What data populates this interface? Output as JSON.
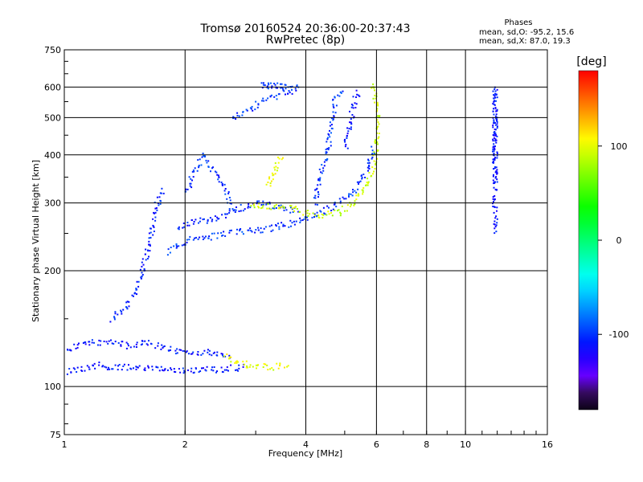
{
  "chart_data": {
    "type": "scatter",
    "title": "Tromsø 20160524 20:36:00-20:37:43",
    "subtitle": "RwPretec (8p)",
    "xlabel": "Frequency [MHz]",
    "ylabel": "Stationary phase Virtual Height [km]",
    "x_scale": "log",
    "y_scale": "log",
    "xlim": [
      1,
      16
    ],
    "ylim": [
      75,
      750
    ],
    "x_ticks": [
      1,
      2,
      4,
      6,
      8,
      10,
      16
    ],
    "y_ticks": [
      75,
      100,
      200,
      300,
      400,
      500,
      600,
      750
    ],
    "grid": true,
    "stats": {
      "heading": "Phases",
      "line_o": "mean, sd,O: -95.2, 15.6",
      "line_x": "mean, sd,X:  87.0, 19.3"
    },
    "colorbar": {
      "label": "[deg]",
      "ticks": [
        100,
        0,
        -100
      ],
      "range": [
        -180,
        180
      ]
    },
    "traces": [
      {
        "phase": -110,
        "points": [
          [
            1.0,
            110
          ],
          [
            1.1,
            112
          ],
          [
            1.2,
            114
          ],
          [
            1.3,
            113
          ],
          [
            1.5,
            112
          ],
          [
            1.7,
            112
          ],
          [
            2.0,
            111
          ],
          [
            2.3,
            111
          ],
          [
            2.6,
            112
          ],
          [
            2.8,
            113
          ]
        ]
      },
      {
        "phase": -110,
        "points": [
          [
            1.0,
            125
          ],
          [
            1.15,
            130
          ],
          [
            1.3,
            132
          ],
          [
            1.45,
            128
          ],
          [
            1.6,
            130
          ],
          [
            1.8,
            126
          ],
          [
            2.0,
            123
          ],
          [
            2.3,
            124
          ],
          [
            2.6,
            120
          ]
        ]
      },
      {
        "phase": -105,
        "points": [
          [
            1.3,
            150
          ],
          [
            1.4,
            160
          ],
          [
            1.5,
            175
          ],
          [
            1.55,
            195
          ],
          [
            1.6,
            220
          ],
          [
            1.65,
            260
          ],
          [
            1.7,
            300
          ],
          [
            1.75,
            330
          ]
        ]
      },
      {
        "phase": -100,
        "points": [
          [
            1.8,
            225
          ],
          [
            1.95,
            235
          ],
          [
            2.1,
            245
          ],
          [
            2.3,
            245
          ],
          [
            2.5,
            250
          ],
          [
            2.8,
            255
          ],
          [
            3.2,
            258
          ],
          [
            3.6,
            265
          ],
          [
            4.0,
            275
          ],
          [
            4.4,
            285
          ],
          [
            4.8,
            300
          ],
          [
            5.2,
            320
          ],
          [
            5.6,
            360
          ],
          [
            5.9,
            420
          ]
        ]
      },
      {
        "phase": -105,
        "points": [
          [
            1.9,
            260
          ],
          [
            2.1,
            270
          ],
          [
            2.4,
            275
          ],
          [
            2.7,
            290
          ],
          [
            3.0,
            300
          ],
          [
            3.4,
            295
          ],
          [
            3.8,
            285
          ]
        ]
      },
      {
        "phase": -100,
        "points": [
          [
            2.0,
            320
          ],
          [
            2.1,
            360
          ],
          [
            2.2,
            400
          ],
          [
            2.3,
            380
          ],
          [
            2.5,
            330
          ],
          [
            2.6,
            290
          ]
        ]
      },
      {
        "phase": -100,
        "points": [
          [
            2.6,
            500
          ],
          [
            2.8,
            520
          ],
          [
            3.0,
            540
          ],
          [
            3.2,
            560
          ],
          [
            3.5,
            580
          ],
          [
            3.8,
            600
          ],
          [
            3.1,
            610
          ],
          [
            3.5,
            605
          ]
        ]
      },
      {
        "phase": -110,
        "points": [
          [
            5.0,
            420
          ],
          [
            5.1,
            470
          ],
          [
            5.2,
            520
          ],
          [
            5.3,
            560
          ],
          [
            5.4,
            590
          ]
        ]
      },
      {
        "phase": 90,
        "points": [
          [
            2.9,
            300
          ],
          [
            3.2,
            295
          ],
          [
            3.6,
            292
          ],
          [
            4.0,
            285
          ],
          [
            4.4,
            280
          ],
          [
            4.8,
            285
          ],
          [
            5.2,
            300
          ],
          [
            5.6,
            330
          ],
          [
            5.9,
            380
          ],
          [
            6.0,
            450
          ],
          [
            6.0,
            520
          ],
          [
            5.9,
            580
          ],
          [
            5.8,
            620
          ]
        ]
      },
      {
        "phase": 100,
        "points": [
          [
            2.5,
            120
          ],
          [
            2.8,
            115
          ],
          [
            3.0,
            113
          ],
          [
            3.3,
            113
          ],
          [
            3.6,
            114
          ]
        ]
      },
      {
        "phase": 100,
        "points": [
          [
            3.2,
            330
          ],
          [
            3.3,
            360
          ],
          [
            3.4,
            390
          ],
          [
            3.5,
            400
          ]
        ]
      },
      {
        "phase": -110,
        "points": [
          [
            11.8,
            350
          ],
          [
            11.8,
            500
          ],
          [
            11.8,
            600
          ],
          [
            11.8,
            250
          ]
        ]
      },
      {
        "phase": -100,
        "points": [
          [
            4.2,
            300
          ],
          [
            4.3,
            350
          ],
          [
            4.5,
            400
          ],
          [
            4.7,
            550
          ],
          [
            4.9,
            600
          ]
        ]
      }
    ]
  }
}
